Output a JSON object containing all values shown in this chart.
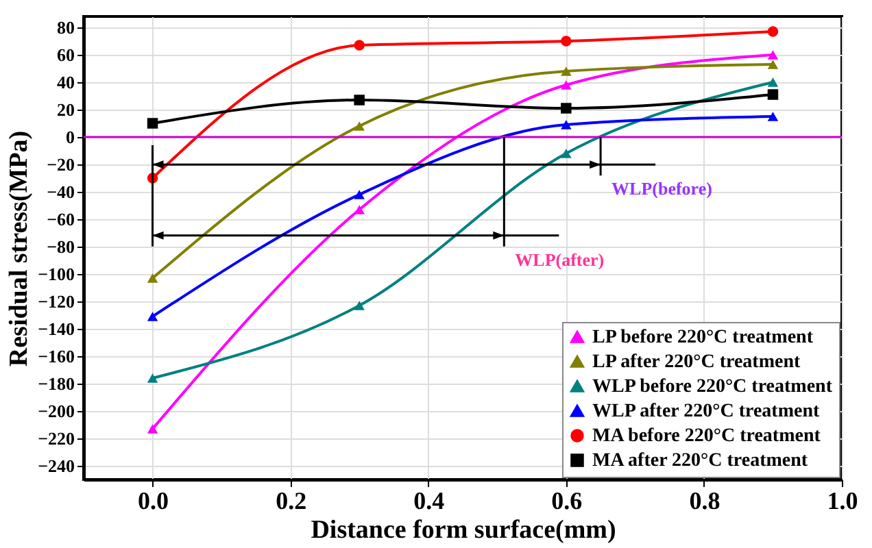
{
  "chart_data": {
    "type": "line",
    "xlabel": "Distance form surface(mm)",
    "ylabel": "Residual stress(MPa)",
    "x": [
      0,
      0.3,
      0.6,
      0.9
    ],
    "series": [
      {
        "name": "LP before 220°C treatment",
        "color": "#ff00ff",
        "marker": "triangle",
        "values": [
          -213,
          -53,
          38,
          60
        ]
      },
      {
        "name": "LP after 220°C treatment",
        "color": "#808000",
        "marker": "triangle",
        "values": [
          -103,
          8,
          48,
          53
        ]
      },
      {
        "name": "WLP before 220°C treatment",
        "color": "#008080",
        "marker": "triangle",
        "values": [
          -176,
          -123,
          -12,
          40
        ]
      },
      {
        "name": "WLP after 220°C treatment",
        "color": "#0000ff",
        "marker": "triangle",
        "values": [
          -131,
          -42,
          9,
          15
        ]
      },
      {
        "name": "MA before 220°C treatment",
        "color": "#ff0000",
        "marker": "circle",
        "values": [
          -30,
          67,
          70,
          77
        ]
      },
      {
        "name": "MA after 220°C treatment",
        "color": "#000000",
        "marker": "square",
        "values": [
          10,
          27,
          21,
          31
        ]
      }
    ],
    "xlim": [
      -0.1,
      1.0
    ],
    "xticks": [
      {
        "value": 0,
        "label": "0.0"
      },
      {
        "value": 0.2,
        "label": "0.2"
      },
      {
        "value": 0.4,
        "label": "0.4"
      },
      {
        "value": 0.6,
        "label": "0.6"
      },
      {
        "value": 0.8,
        "label": "0.8"
      },
      {
        "value": 1.0,
        "label": "1.0"
      }
    ],
    "ylim": [
      -250,
      88
    ],
    "yticks": [
      -240,
      -220,
      -200,
      -180,
      -160,
      -140,
      -120,
      -100,
      -80,
      -60,
      -40,
      -20,
      0,
      20,
      40,
      60,
      80
    ],
    "ref_lines": [
      {
        "axis": "y",
        "value": 0,
        "color": "#cc00cc"
      }
    ],
    "annotations": [
      {
        "text": "WLP(before)",
        "x": 0.65,
        "y": 0
      },
      {
        "text": "WLP(after)",
        "x": 0.51,
        "y": 0
      }
    ],
    "grid": true,
    "legend": "bottom right",
    "line_style": "solid"
  }
}
